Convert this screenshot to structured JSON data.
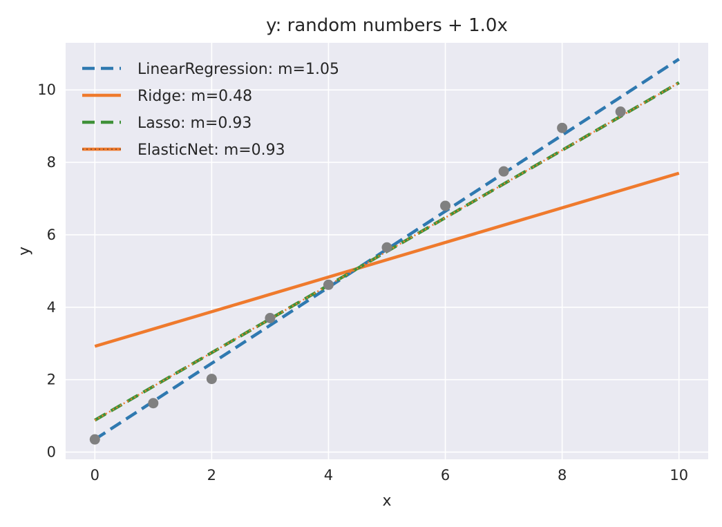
{
  "chart_data": {
    "type": "line",
    "title": "y: random numbers + 1.0x",
    "xlabel": "x",
    "ylabel": "y",
    "xlim": [
      -0.5,
      10.5
    ],
    "ylim": [
      -0.2,
      11.3
    ],
    "xticks": [
      0,
      2,
      4,
      6,
      8,
      10
    ],
    "yticks": [
      0,
      2,
      4,
      6,
      8,
      10
    ],
    "grid": true,
    "legend_position": "upper-left",
    "scatter": {
      "x": [
        0,
        1,
        2,
        3,
        4,
        5,
        6,
        7,
        8,
        9
      ],
      "y": [
        0.35,
        1.35,
        2.02,
        3.7,
        4.62,
        5.65,
        6.8,
        7.75,
        8.95,
        9.4
      ],
      "color": "#808080"
    },
    "series": [
      {
        "name": "LinearRegression: m=1.05",
        "x": [
          0,
          10
        ],
        "y": [
          0.35,
          10.85
        ],
        "color": "#2f79b0",
        "style": "dashed"
      },
      {
        "name": "Ridge: m=0.48",
        "x": [
          0,
          10
        ],
        "y": [
          2.92,
          7.7
        ],
        "color": "#ef7a2d",
        "style": "solid"
      },
      {
        "name": "Lasso: m=0.93",
        "x": [
          0,
          10
        ],
        "y": [
          0.88,
          10.2
        ],
        "color": "#3f9138",
        "style": "dashed"
      },
      {
        "name": "ElasticNet: m=0.93",
        "x": [
          0,
          10
        ],
        "y": [
          0.88,
          10.2
        ],
        "color": "#ef7a2d",
        "style": "dotted"
      }
    ],
    "colors": {
      "plot_background": "#eaeaf2",
      "grid": "#ffffff",
      "text": "#262626"
    }
  }
}
